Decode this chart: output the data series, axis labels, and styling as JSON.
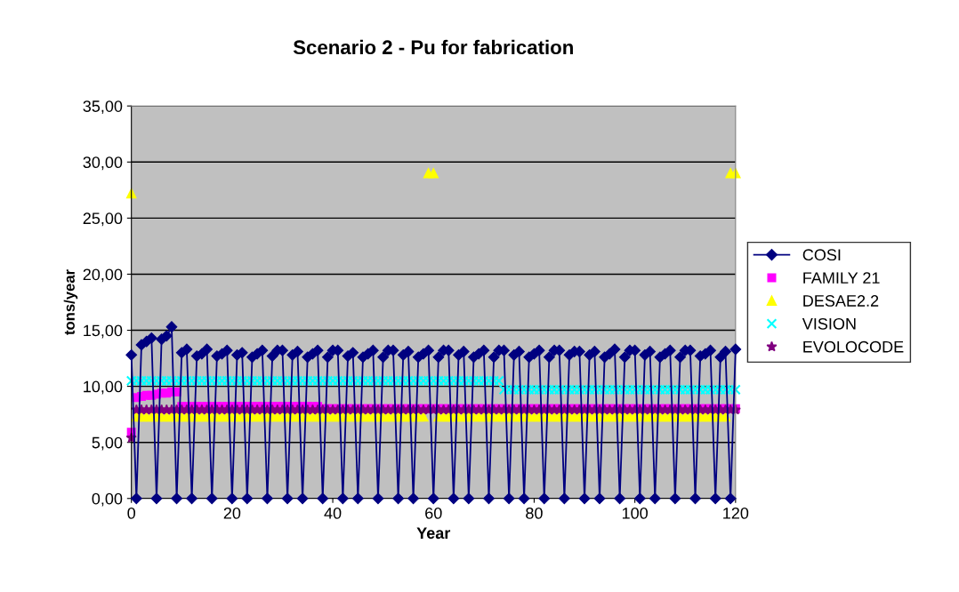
{
  "chart_data": {
    "type": "scatter",
    "title": "Scenario 2 - Pu for fabrication",
    "xlabel": "Year",
    "ylabel": "tons/year",
    "x": [
      0,
      1,
      2,
      3,
      4,
      5,
      6,
      7,
      8,
      9,
      10,
      11,
      12,
      13,
      14,
      15,
      16,
      17,
      18,
      19,
      20,
      21,
      22,
      23,
      24,
      25,
      26,
      27,
      28,
      29,
      30,
      31,
      32,
      33,
      34,
      35,
      36,
      37,
      38,
      39,
      40,
      41,
      42,
      43,
      44,
      45,
      46,
      47,
      48,
      49,
      50,
      51,
      52,
      53,
      54,
      55,
      56,
      57,
      58,
      59,
      60,
      61,
      62,
      63,
      64,
      65,
      66,
      67,
      68,
      69,
      70,
      71,
      72,
      73,
      74,
      75,
      76,
      77,
      78,
      79,
      80,
      81,
      82,
      83,
      84,
      85,
      86,
      87,
      88,
      89,
      90,
      91,
      92,
      93,
      94,
      95,
      96,
      97,
      98,
      99,
      100,
      101,
      102,
      103,
      104,
      105,
      106,
      107,
      108,
      109,
      110,
      111,
      112,
      113,
      114,
      115,
      116,
      117,
      118,
      119,
      120
    ],
    "series": [
      {
        "name": "COSI",
        "type": "line",
        "marker": "diamond",
        "color": "#000080",
        "values": [
          12.8,
          0,
          13.7,
          14.0,
          14.3,
          0,
          14.2,
          14.5,
          15.3,
          0,
          13.0,
          13.3,
          0,
          12.7,
          12.9,
          13.3,
          0,
          12.7,
          12.9,
          13.2,
          0,
          12.8,
          13.0,
          0,
          12.6,
          12.9,
          13.2,
          0,
          12.7,
          13.2,
          13.2,
          0,
          12.8,
          13.1,
          0,
          12.6,
          12.9,
          13.2,
          0,
          12.6,
          13.2,
          13.2,
          0,
          12.7,
          13.0,
          0,
          12.6,
          12.9,
          13.2,
          0,
          12.6,
          13.2,
          13.2,
          0,
          12.8,
          13.1,
          0,
          12.6,
          12.9,
          13.2,
          0,
          12.6,
          13.2,
          13.2,
          0,
          12.8,
          13.1,
          0,
          12.6,
          12.9,
          13.2,
          0,
          12.6,
          13.2,
          13.2,
          0,
          12.8,
          13.1,
          0,
          12.6,
          12.9,
          13.2,
          0,
          12.6,
          13.2,
          13.2,
          0,
          12.8,
          13.1,
          13.1,
          0,
          12.8,
          13.1,
          0,
          12.6,
          12.9,
          13.3,
          0,
          12.6,
          13.2,
          13.2,
          0,
          12.8,
          13.1,
          0,
          12.6,
          12.9,
          13.2,
          0,
          12.6,
          13.2,
          13.2,
          0,
          12.7,
          12.9,
          13.2,
          0,
          12.6,
          13.1,
          0,
          13.3
        ]
      },
      {
        "name": "FAMILY 21",
        "marker": "square",
        "color": "#ff00ff",
        "values": [
          5.9,
          9.0,
          9.1,
          9.2,
          9.2,
          9.3,
          9.4,
          9.4,
          9.5,
          9.5,
          8.2,
          8.2,
          8.2,
          8.2,
          8.2,
          8.2,
          8.2,
          8.2,
          8.2,
          8.2,
          8.2,
          8.2,
          8.2,
          8.2,
          8.2,
          8.2,
          8.2,
          8.2,
          8.2,
          8.2,
          8.2,
          8.2,
          8.2,
          8.2,
          8.2,
          8.2,
          8.2,
          8.2,
          8.0,
          8.0,
          8.0,
          8.0,
          8.0,
          8.0,
          8.0,
          8.0,
          8.0,
          8.0,
          8.0,
          8.0,
          8.0,
          8.0,
          8.0,
          8.0,
          8.0,
          8.0,
          8.0,
          8.0,
          8.0,
          8.0,
          8.0,
          8.0,
          8.0,
          8.0,
          8.0,
          8.0,
          8.0,
          8.0,
          8.0,
          8.0,
          8.0,
          8.0,
          8.0,
          8.0,
          8.0,
          8.0,
          8.0,
          8.0,
          8.0,
          8.0,
          8.0,
          8.0,
          8.0,
          8.0,
          8.0,
          8.0,
          8.0,
          8.0,
          8.0,
          8.0,
          8.0,
          8.0,
          8.0,
          8.0,
          8.0,
          8.0,
          8.0,
          8.0,
          8.0,
          8.0,
          8.0,
          8.0,
          8.0,
          8.0,
          8.0,
          8.0,
          8.0,
          8.0,
          8.0,
          8.0,
          8.0,
          8.0,
          8.0,
          8.0,
          8.0,
          8.0,
          8.0,
          8.0,
          8.0,
          8.0,
          8.0
        ]
      },
      {
        "name": "DESAE2.2",
        "marker": "triangle",
        "color": "#ffff00",
        "values": [
          27.2,
          7.3,
          7.3,
          7.3,
          7.3,
          7.3,
          7.3,
          7.3,
          7.3,
          7.3,
          7.3,
          7.3,
          7.3,
          7.3,
          7.3,
          7.3,
          7.3,
          7.3,
          7.3,
          7.3,
          7.3,
          7.3,
          7.3,
          7.3,
          7.3,
          7.3,
          7.3,
          7.3,
          7.3,
          7.3,
          7.3,
          7.3,
          7.3,
          7.3,
          7.3,
          7.3,
          7.3,
          7.3,
          7.3,
          7.3,
          7.3,
          7.3,
          7.3,
          7.3,
          7.3,
          7.3,
          7.3,
          7.3,
          7.3,
          7.3,
          7.3,
          7.3,
          7.3,
          7.3,
          7.3,
          7.3,
          7.3,
          7.3,
          7.3,
          29.0,
          29.0,
          7.3,
          7.3,
          7.3,
          7.3,
          7.3,
          7.3,
          7.3,
          7.3,
          7.3,
          7.3,
          7.3,
          7.3,
          7.3,
          7.3,
          7.3,
          7.3,
          7.3,
          7.3,
          7.3,
          7.3,
          7.3,
          7.3,
          7.3,
          7.3,
          7.3,
          7.3,
          7.3,
          7.3,
          7.3,
          7.3,
          7.3,
          7.3,
          7.3,
          7.3,
          7.3,
          7.3,
          7.3,
          7.3,
          7.3,
          7.3,
          7.3,
          7.3,
          7.3,
          7.3,
          7.3,
          7.3,
          7.3,
          7.3,
          7.3,
          7.3,
          7.3,
          7.3,
          7.3,
          7.3,
          7.3,
          7.3,
          7.3,
          7.3,
          29.0,
          29.0
        ]
      },
      {
        "name": "VISION",
        "marker": "cross",
        "color": "#00ffff",
        "values": [
          10.5,
          10.5,
          10.5,
          10.5,
          10.5,
          10.5,
          10.5,
          10.5,
          10.5,
          10.5,
          10.5,
          10.5,
          10.5,
          10.5,
          10.5,
          10.5,
          10.5,
          10.5,
          10.5,
          10.5,
          10.5,
          10.5,
          10.5,
          10.5,
          10.5,
          10.5,
          10.5,
          10.5,
          10.5,
          10.5,
          10.5,
          10.5,
          10.5,
          10.5,
          10.5,
          10.5,
          10.5,
          10.5,
          10.5,
          10.5,
          10.5,
          10.5,
          10.5,
          10.5,
          10.5,
          10.5,
          10.5,
          10.5,
          10.5,
          10.5,
          10.5,
          10.5,
          10.5,
          10.5,
          10.5,
          10.5,
          10.5,
          10.5,
          10.5,
          10.5,
          10.5,
          10.5,
          10.5,
          10.5,
          10.5,
          10.5,
          10.5,
          10.5,
          10.5,
          10.5,
          10.5,
          10.5,
          10.5,
          10.5,
          9.7,
          9.7,
          9.7,
          9.7,
          9.7,
          9.7,
          9.7,
          9.7,
          9.7,
          9.7,
          9.7,
          9.7,
          9.7,
          9.7,
          9.7,
          9.7,
          9.7,
          9.7,
          9.7,
          9.7,
          9.7,
          9.7,
          9.7,
          9.7,
          9.7,
          9.7,
          9.7,
          9.7,
          9.7,
          9.7,
          9.7,
          9.7,
          9.7,
          9.7,
          9.7,
          9.7,
          9.7,
          9.7,
          9.7,
          9.7,
          9.7,
          9.7,
          9.7,
          9.7,
          9.7,
          9.7,
          9.7
        ]
      },
      {
        "name": "EVOLOCODE",
        "marker": "star",
        "color": "#800080",
        "values": [
          5.4,
          7.9,
          7.9,
          7.9,
          7.9,
          7.9,
          7.9,
          7.9,
          7.9,
          7.9,
          7.9,
          7.9,
          7.9,
          7.9,
          7.9,
          7.9,
          7.9,
          7.9,
          7.9,
          7.9,
          7.9,
          7.9,
          7.9,
          7.9,
          7.9,
          7.9,
          7.9,
          7.9,
          7.9,
          7.9,
          7.9,
          7.9,
          7.9,
          7.9,
          7.9,
          7.9,
          7.9,
          7.9,
          7.9,
          7.9,
          7.9,
          7.9,
          7.9,
          7.9,
          7.9,
          7.9,
          7.9,
          7.9,
          7.9,
          7.9,
          7.9,
          7.9,
          7.9,
          7.9,
          7.9,
          7.9,
          7.9,
          7.9,
          7.9,
          7.9,
          7.9,
          7.9,
          7.9,
          7.9,
          7.9,
          7.9,
          7.9,
          7.9,
          7.9,
          7.9,
          7.9,
          7.9,
          7.9,
          7.9,
          7.9,
          7.9,
          7.9,
          7.9,
          7.9,
          7.9,
          7.9,
          7.9,
          7.9,
          7.9,
          7.9,
          7.9,
          7.9,
          7.9,
          7.9,
          7.9,
          7.9,
          7.9,
          7.9,
          7.9,
          7.9,
          7.9,
          7.9,
          7.9,
          7.9,
          7.9,
          7.9,
          7.9,
          7.9,
          7.9,
          7.9,
          7.9,
          7.9,
          7.9,
          7.9,
          7.9,
          7.9,
          7.9,
          7.9,
          7.9,
          7.9,
          7.9,
          7.9,
          7.9,
          7.9,
          7.9,
          7.9
        ]
      }
    ],
    "xlim": [
      0,
      120
    ],
    "xticks": [
      0,
      20,
      40,
      60,
      80,
      100,
      120
    ],
    "ylim": [
      0,
      35
    ],
    "yticks": [
      {
        "value": 0,
        "label": "0,00"
      },
      {
        "value": 5,
        "label": "5,00"
      },
      {
        "value": 10,
        "label": "10,00"
      },
      {
        "value": 15,
        "label": "15,00"
      },
      {
        "value": 20,
        "label": "20,00"
      },
      {
        "value": 25,
        "label": "25,00"
      },
      {
        "value": 30,
        "label": "30,00"
      },
      {
        "value": 35,
        "label": "35,00"
      }
    ],
    "grid": "y",
    "legend": "right"
  }
}
